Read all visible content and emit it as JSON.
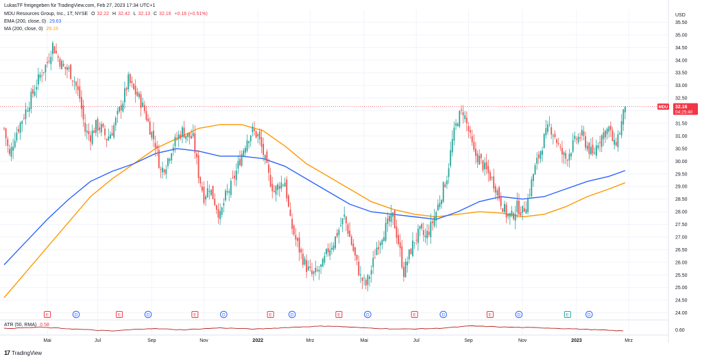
{
  "header": {
    "publisher": "LukasTF freigegeben für TradingView.com, Feb 27, 2023 17:34 UTC+1",
    "symbol": "MDU Resources Group, Inc., 1T, NYSE",
    "o_label": "O",
    "o": "32.22",
    "h_label": "H",
    "h": "32.42",
    "l_label": "L",
    "l": "32.13",
    "c_label": "C",
    "c": "32.16",
    "change": "+0.16 (+0.51%)",
    "ema_label": "EMA (200, close, 0)",
    "ema_value": "29.63",
    "ma_label": "MA (200, close, 0)",
    "ma_value": "29.15",
    "atr_label": "ATR (50, RMA)",
    "atr_value": "0.58"
  },
  "price_badge": {
    "ticker": "MDU",
    "price": "32.16",
    "countdown": "04:25:40"
  },
  "atr_axis_label": "0.60",
  "footer": {
    "brand": "TradingView"
  },
  "colors": {
    "up": "#26a69a",
    "down": "#ef5350",
    "ema": "#2962ff",
    "ma": "#ff9800",
    "atr": "#b71c1c",
    "last_line": "#f23645"
  },
  "chart_data": {
    "type": "candlestick",
    "currency": "USD",
    "y_ticks": [
      "35.50",
      "35.00",
      "34.50",
      "34.00",
      "33.50",
      "33.00",
      "32.50",
      "32.00",
      "31.50",
      "31.00",
      "30.50",
      "30.00",
      "29.50",
      "29.00",
      "28.50",
      "28.00",
      "27.50",
      "27.00",
      "26.50",
      "26.00",
      "25.50",
      "25.00",
      "24.50",
      "24.00"
    ],
    "ylim": [
      23.8,
      36.0
    ],
    "x_ticks": [
      "Mai",
      "Jul",
      "Sep",
      "Nov",
      "2022",
      "Mrz",
      "Mai",
      "Jul",
      "Sep",
      "Nov",
      "2023",
      "Mrz"
    ],
    "last_close": 32.16,
    "close_path": [
      [
        0,
        31.3
      ],
      [
        3,
        30.2
      ],
      [
        6,
        31.0
      ],
      [
        9,
        31.5
      ],
      [
        12,
        32.0
      ],
      [
        16,
        32.7
      ],
      [
        20,
        33.4
      ],
      [
        24,
        33.9
      ],
      [
        27,
        34.6
      ],
      [
        30,
        34.1
      ],
      [
        33,
        33.7
      ],
      [
        36,
        33.6
      ],
      [
        39,
        33.2
      ],
      [
        42,
        32.5
      ],
      [
        45,
        31.2
      ],
      [
        48,
        31.0
      ],
      [
        51,
        31.4
      ],
      [
        54,
        31.3
      ],
      [
        57,
        30.9
      ],
      [
        60,
        31.2
      ],
      [
        63,
        31.8
      ],
      [
        66,
        32.4
      ],
      [
        69,
        33.2
      ],
      [
        72,
        32.8
      ],
      [
        75,
        32.5
      ],
      [
        78,
        32.0
      ],
      [
        81,
        31.3
      ],
      [
        84,
        30.7
      ],
      [
        87,
        29.6
      ],
      [
        90,
        29.9
      ],
      [
        93,
        30.5
      ],
      [
        96,
        30.9
      ],
      [
        99,
        31.2
      ],
      [
        102,
        31.0
      ],
      [
        105,
        30.9
      ],
      [
        108,
        29.5
      ],
      [
        111,
        28.6
      ],
      [
        114,
        29.0
      ],
      [
        117,
        28.4
      ],
      [
        120,
        27.8
      ],
      [
        123,
        28.6
      ],
      [
        126,
        29.0
      ],
      [
        129,
        29.6
      ],
      [
        132,
        30.3
      ],
      [
        135,
        30.9
      ],
      [
        138,
        31.2
      ],
      [
        141,
        31.0
      ],
      [
        144,
        30.3
      ],
      [
        147,
        29.4
      ],
      [
        150,
        28.8
      ],
      [
        153,
        29.1
      ],
      [
        156,
        29.2
      ],
      [
        159,
        27.6
      ],
      [
        162,
        26.9
      ],
      [
        165,
        26.3
      ],
      [
        168,
        25.8
      ],
      [
        171,
        25.5
      ],
      [
        174,
        25.6
      ],
      [
        177,
        25.9
      ],
      [
        180,
        26.5
      ],
      [
        183,
        26.8
      ],
      [
        186,
        27.3
      ],
      [
        189,
        27.8
      ],
      [
        192,
        27.0
      ],
      [
        195,
        26.2
      ],
      [
        198,
        25.4
      ],
      [
        201,
        25.1
      ],
      [
        204,
        25.7
      ],
      [
        207,
        26.6
      ],
      [
        210,
        27.1
      ],
      [
        213,
        27.5
      ],
      [
        216,
        27.8
      ],
      [
        219,
        26.8
      ],
      [
        222,
        25.6
      ],
      [
        225,
        26.3
      ],
      [
        228,
        26.9
      ],
      [
        231,
        27.2
      ],
      [
        234,
        27.0
      ],
      [
        237,
        27.4
      ],
      [
        240,
        28.0
      ],
      [
        243,
        28.7
      ],
      [
        246,
        29.4
      ],
      [
        249,
        30.8
      ],
      [
        252,
        31.7
      ],
      [
        255,
        32.0
      ],
      [
        258,
        31.2
      ],
      [
        261,
        30.3
      ],
      [
        264,
        30.1
      ],
      [
        267,
        29.7
      ],
      [
        270,
        29.4
      ],
      [
        273,
        29.0
      ],
      [
        276,
        28.4
      ],
      [
        279,
        27.9
      ],
      [
        282,
        27.8
      ],
      [
        285,
        28.2
      ],
      [
        288,
        28.0
      ],
      [
        291,
        28.5
      ],
      [
        294,
        29.5
      ],
      [
        297,
        30.2
      ],
      [
        300,
        30.9
      ],
      [
        303,
        31.4
      ],
      [
        306,
        31.0
      ],
      [
        309,
        30.4
      ],
      [
        312,
        30.1
      ],
      [
        315,
        30.5
      ],
      [
        318,
        30.9
      ],
      [
        321,
        31.0
      ],
      [
        324,
        30.6
      ],
      [
        327,
        30.2
      ],
      [
        330,
        30.8
      ],
      [
        333,
        31.1
      ],
      [
        336,
        31.3
      ],
      [
        339,
        30.6
      ],
      [
        342,
        31.2
      ],
      [
        345,
        32.16
      ]
    ],
    "series": [
      {
        "name": "EMA (200, close, 0)",
        "values": [
          [
            0,
            25.9
          ],
          [
            12,
            26.8
          ],
          [
            24,
            27.7
          ],
          [
            36,
            28.5
          ],
          [
            48,
            29.2
          ],
          [
            60,
            29.6
          ],
          [
            72,
            29.9
          ],
          [
            84,
            30.3
          ],
          [
            96,
            30.5
          ],
          [
            108,
            30.4
          ],
          [
            120,
            30.2
          ],
          [
            132,
            30.2
          ],
          [
            144,
            30.1
          ],
          [
            156,
            29.8
          ],
          [
            168,
            29.3
          ],
          [
            180,
            28.8
          ],
          [
            192,
            28.3
          ],
          [
            204,
            28.0
          ],
          [
            216,
            27.9
          ],
          [
            228,
            27.8
          ],
          [
            240,
            27.7
          ],
          [
            252,
            28.0
          ],
          [
            264,
            28.4
          ],
          [
            276,
            28.6
          ],
          [
            288,
            28.5
          ],
          [
            300,
            28.6
          ],
          [
            312,
            28.9
          ],
          [
            324,
            29.2
          ],
          [
            336,
            29.4
          ],
          [
            345,
            29.63
          ]
        ]
      },
      {
        "name": "MA (200, close, 0)",
        "values": [
          [
            0,
            24.6
          ],
          [
            12,
            25.6
          ],
          [
            24,
            26.6
          ],
          [
            36,
            27.6
          ],
          [
            48,
            28.6
          ],
          [
            60,
            29.3
          ],
          [
            72,
            29.9
          ],
          [
            84,
            30.5
          ],
          [
            96,
            30.9
          ],
          [
            108,
            31.3
          ],
          [
            120,
            31.45
          ],
          [
            132,
            31.45
          ],
          [
            144,
            31.2
          ],
          [
            156,
            30.6
          ],
          [
            168,
            29.9
          ],
          [
            180,
            29.4
          ],
          [
            192,
            28.9
          ],
          [
            204,
            28.4
          ],
          [
            216,
            28.1
          ],
          [
            228,
            27.9
          ],
          [
            240,
            27.8
          ],
          [
            252,
            27.9
          ],
          [
            264,
            28.0
          ],
          [
            276,
            27.95
          ],
          [
            288,
            27.8
          ],
          [
            300,
            27.9
          ],
          [
            312,
            28.2
          ],
          [
            324,
            28.6
          ],
          [
            336,
            28.9
          ],
          [
            345,
            29.15
          ]
        ]
      }
    ],
    "atr": [
      [
        0,
        0.62
      ],
      [
        20,
        0.64
      ],
      [
        40,
        0.61
      ],
      [
        60,
        0.58
      ],
      [
        80,
        0.62
      ],
      [
        100,
        0.6
      ],
      [
        120,
        0.63
      ],
      [
        140,
        0.61
      ],
      [
        160,
        0.64
      ],
      [
        180,
        0.66
      ],
      [
        200,
        0.63
      ],
      [
        220,
        0.61
      ],
      [
        240,
        0.62
      ],
      [
        260,
        0.66
      ],
      [
        280,
        0.64
      ],
      [
        300,
        0.63
      ],
      [
        320,
        0.61
      ],
      [
        345,
        0.58
      ]
    ],
    "events": [
      {
        "t": 24,
        "type": "E"
      },
      {
        "t": 40,
        "type": "D"
      },
      {
        "t": 64,
        "type": "E"
      },
      {
        "t": 80,
        "type": "D"
      },
      {
        "t": 106,
        "type": "E"
      },
      {
        "t": 122,
        "type": "D"
      },
      {
        "t": 148,
        "type": "E"
      },
      {
        "t": 160,
        "type": "D"
      },
      {
        "t": 186,
        "type": "E"
      },
      {
        "t": 202,
        "type": "D"
      },
      {
        "t": 228,
        "type": "E"
      },
      {
        "t": 244,
        "type": "D"
      },
      {
        "t": 270,
        "type": "E"
      },
      {
        "t": 286,
        "type": "D"
      },
      {
        "t": 313,
        "type": "E"
      },
      {
        "t": 325,
        "type": "D"
      }
    ]
  }
}
